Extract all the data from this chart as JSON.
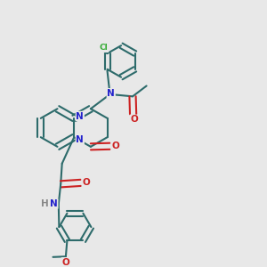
{
  "bg": "#e8e8e8",
  "bc": "#2d6b6b",
  "bw": 1.5,
  "dbl": 0.012,
  "N_col": "#2222cc",
  "O_col": "#cc2222",
  "Cl_col": "#33aa33",
  "H_col": "#888888",
  "fs": 7.5,
  "fs_cl": 6.5,
  "figsize": [
    3.0,
    3.0
  ],
  "dpi": 100,
  "xlim": [
    0.0,
    1.0
  ],
  "ylim": [
    0.0,
    1.0
  ]
}
